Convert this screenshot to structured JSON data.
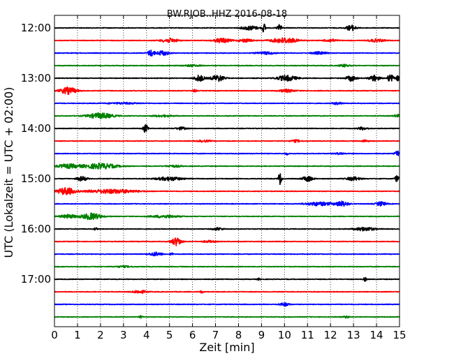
{
  "chart_data": {
    "type": "line",
    "title": "BW.RJOB..HHZ 2016-08-18",
    "xlabel": "Zeit  [min]",
    "ylabel": "UTC (Lokalzeit = UTC + 02:00)",
    "xlim": [
      0,
      15
    ],
    "x_ticks": [
      "0",
      "1",
      "2",
      "3",
      "4",
      "5",
      "6",
      "7",
      "8",
      "9",
      "10",
      "11",
      "12",
      "13",
      "14",
      "15"
    ],
    "y_tick_labels": [
      "12:00",
      "13:00",
      "14:00",
      "15:00",
      "16:00",
      "17:00"
    ],
    "grid": "vertical dotted",
    "trace_colors": [
      "#000000",
      "#ff0000",
      "#0000ff",
      "#008000"
    ],
    "traces": [
      {
        "start": "12:00",
        "bursts": [
          {
            "t": 8.5,
            "amp": 0.45,
            "w": 0.5
          },
          {
            "t": 9.1,
            "amp": 1.0,
            "w": 0.1
          },
          {
            "t": 9.8,
            "amp": 0.8,
            "w": 0.15
          },
          {
            "t": 12.9,
            "amp": 0.6,
            "w": 0.3
          }
        ]
      },
      {
        "start": "12:15",
        "bursts": [
          {
            "t": 5.0,
            "amp": 0.45,
            "w": 0.5
          },
          {
            "t": 7.3,
            "amp": 0.5,
            "w": 0.5
          },
          {
            "t": 8.3,
            "amp": 0.35,
            "w": 0.4
          },
          {
            "t": 10.0,
            "amp": 0.6,
            "w": 0.8
          },
          {
            "t": 12.0,
            "amp": 0.3,
            "w": 0.4
          },
          {
            "t": 14.0,
            "amp": 0.3,
            "w": 0.5
          }
        ]
      },
      {
        "start": "12:30",
        "bursts": [
          {
            "t": 4.2,
            "amp": 0.7,
            "w": 0.2
          },
          {
            "t": 4.7,
            "amp": 0.5,
            "w": 0.4
          },
          {
            "t": 9.2,
            "amp": 0.25,
            "w": 0.6
          },
          {
            "t": 11.5,
            "amp": 0.25,
            "w": 0.5
          }
        ]
      },
      {
        "start": "12:45",
        "bursts": [
          {
            "t": 6.0,
            "amp": 0.2,
            "w": 0.5
          },
          {
            "t": 12.6,
            "amp": 0.25,
            "w": 0.3
          }
        ]
      },
      {
        "start": "13:00",
        "bursts": [
          {
            "t": 6.3,
            "amp": 0.7,
            "w": 0.3
          },
          {
            "t": 7.1,
            "amp": 0.7,
            "w": 0.4
          },
          {
            "t": 10.1,
            "amp": 0.6,
            "w": 0.6
          },
          {
            "t": 12.9,
            "amp": 0.6,
            "w": 0.3
          },
          {
            "t": 13.9,
            "amp": 0.7,
            "w": 0.3
          },
          {
            "t": 14.6,
            "amp": 0.8,
            "w": 0.2
          },
          {
            "t": 14.95,
            "amp": 0.8,
            "w": 0.1
          }
        ]
      },
      {
        "start": "13:15",
        "bursts": [
          {
            "t": 0.6,
            "amp": 0.75,
            "w": 0.5
          },
          {
            "t": 6.1,
            "amp": 0.3,
            "w": 0.1
          },
          {
            "t": 10.1,
            "amp": 0.3,
            "w": 0.5
          }
        ]
      },
      {
        "start": "13:30",
        "bursts": [
          {
            "t": 3.0,
            "amp": 0.15,
            "w": 1.0
          },
          {
            "t": 12.3,
            "amp": 0.25,
            "w": 0.3
          }
        ]
      },
      {
        "start": "13:45",
        "bursts": [
          {
            "t": 2.0,
            "amp": 0.6,
            "w": 0.8
          },
          {
            "t": 4.7,
            "amp": 0.2,
            "w": 0.6
          },
          {
            "t": 14.9,
            "amp": 0.3,
            "w": 0.2
          }
        ]
      },
      {
        "start": "14:00",
        "bursts": [
          {
            "t": 3.95,
            "amp": 0.9,
            "w": 0.15
          },
          {
            "t": 5.5,
            "amp": 0.3,
            "w": 0.3
          },
          {
            "t": 13.4,
            "amp": 0.3,
            "w": 0.3
          }
        ]
      },
      {
        "start": "14:15",
        "bursts": [
          {
            "t": 6.5,
            "amp": 0.2,
            "w": 0.4
          },
          {
            "t": 10.5,
            "amp": 0.25,
            "w": 0.3
          },
          {
            "t": 13.5,
            "amp": 0.25,
            "w": 0.2
          }
        ]
      },
      {
        "start": "14:30",
        "bursts": [
          {
            "t": 10.1,
            "amp": 0.25,
            "w": 0.1
          },
          {
            "t": 12.4,
            "amp": 0.2,
            "w": 0.3
          },
          {
            "t": 14.9,
            "amp": 0.55,
            "w": 0.15
          }
        ]
      },
      {
        "start": "14:45",
        "bursts": [
          {
            "t": 0.6,
            "amp": 0.45,
            "w": 0.7
          },
          {
            "t": 2.0,
            "amp": 0.6,
            "w": 1.0
          },
          {
            "t": 5.2,
            "amp": 0.2,
            "w": 0.5
          }
        ]
      },
      {
        "start": "15:00",
        "bursts": [
          {
            "t": 1.2,
            "amp": 0.5,
            "w": 0.3
          },
          {
            "t": 5.0,
            "amp": 0.4,
            "w": 0.8
          },
          {
            "t": 9.8,
            "amp": 1.3,
            "w": 0.1
          },
          {
            "t": 11.0,
            "amp": 0.6,
            "w": 0.3
          },
          {
            "t": 13.0,
            "amp": 0.4,
            "w": 0.4
          },
          {
            "t": 14.9,
            "amp": 0.7,
            "w": 0.15
          }
        ]
      },
      {
        "start": "15:15",
        "bursts": [
          {
            "t": 0.5,
            "amp": 0.8,
            "w": 0.5
          },
          {
            "t": 2.5,
            "amp": 0.45,
            "w": 1.5
          }
        ]
      },
      {
        "start": "15:30",
        "bursts": [
          {
            "t": 11.5,
            "amp": 0.4,
            "w": 0.8
          },
          {
            "t": 12.5,
            "amp": 0.55,
            "w": 0.4
          },
          {
            "t": 14.2,
            "amp": 0.45,
            "w": 0.3
          }
        ]
      },
      {
        "start": "15:45",
        "bursts": [
          {
            "t": 0.6,
            "amp": 0.4,
            "w": 0.5
          },
          {
            "t": 1.6,
            "amp": 0.7,
            "w": 0.6
          },
          {
            "t": 4.8,
            "amp": 0.3,
            "w": 0.8
          }
        ]
      },
      {
        "start": "16:00",
        "bursts": [
          {
            "t": 1.8,
            "amp": 0.35,
            "w": 0.1
          },
          {
            "t": 7.1,
            "amp": 0.3,
            "w": 0.3
          },
          {
            "t": 13.5,
            "amp": 0.4,
            "w": 0.6
          }
        ]
      },
      {
        "start": "16:15",
        "bursts": [
          {
            "t": 5.3,
            "amp": 0.9,
            "w": 0.3
          },
          {
            "t": 6.7,
            "amp": 0.2,
            "w": 0.4
          }
        ]
      },
      {
        "start": "16:30",
        "bursts": [
          {
            "t": 4.4,
            "amp": 0.4,
            "w": 0.4
          },
          {
            "t": 5.1,
            "amp": 0.25,
            "w": 0.1
          }
        ]
      },
      {
        "start": "16:45",
        "bursts": [
          {
            "t": 3.0,
            "amp": 0.15,
            "w": 0.5
          }
        ]
      },
      {
        "start": "17:00",
        "bursts": [
          {
            "t": 8.9,
            "amp": 0.2,
            "w": 0.1
          },
          {
            "t": 13.5,
            "amp": 0.4,
            "w": 0.1
          }
        ]
      },
      {
        "start": "17:15",
        "bursts": [
          {
            "t": 3.7,
            "amp": 0.35,
            "w": 0.4
          },
          {
            "t": 6.4,
            "amp": 0.25,
            "w": 0.1
          }
        ]
      },
      {
        "start": "17:30",
        "bursts": [
          {
            "t": 10.0,
            "amp": 0.35,
            "w": 0.3
          }
        ]
      },
      {
        "start": "17:45",
        "bursts": [
          {
            "t": 3.75,
            "amp": 0.25,
            "w": 0.1
          },
          {
            "t": 12.7,
            "amp": 0.2,
            "w": 0.2
          }
        ]
      }
    ]
  }
}
